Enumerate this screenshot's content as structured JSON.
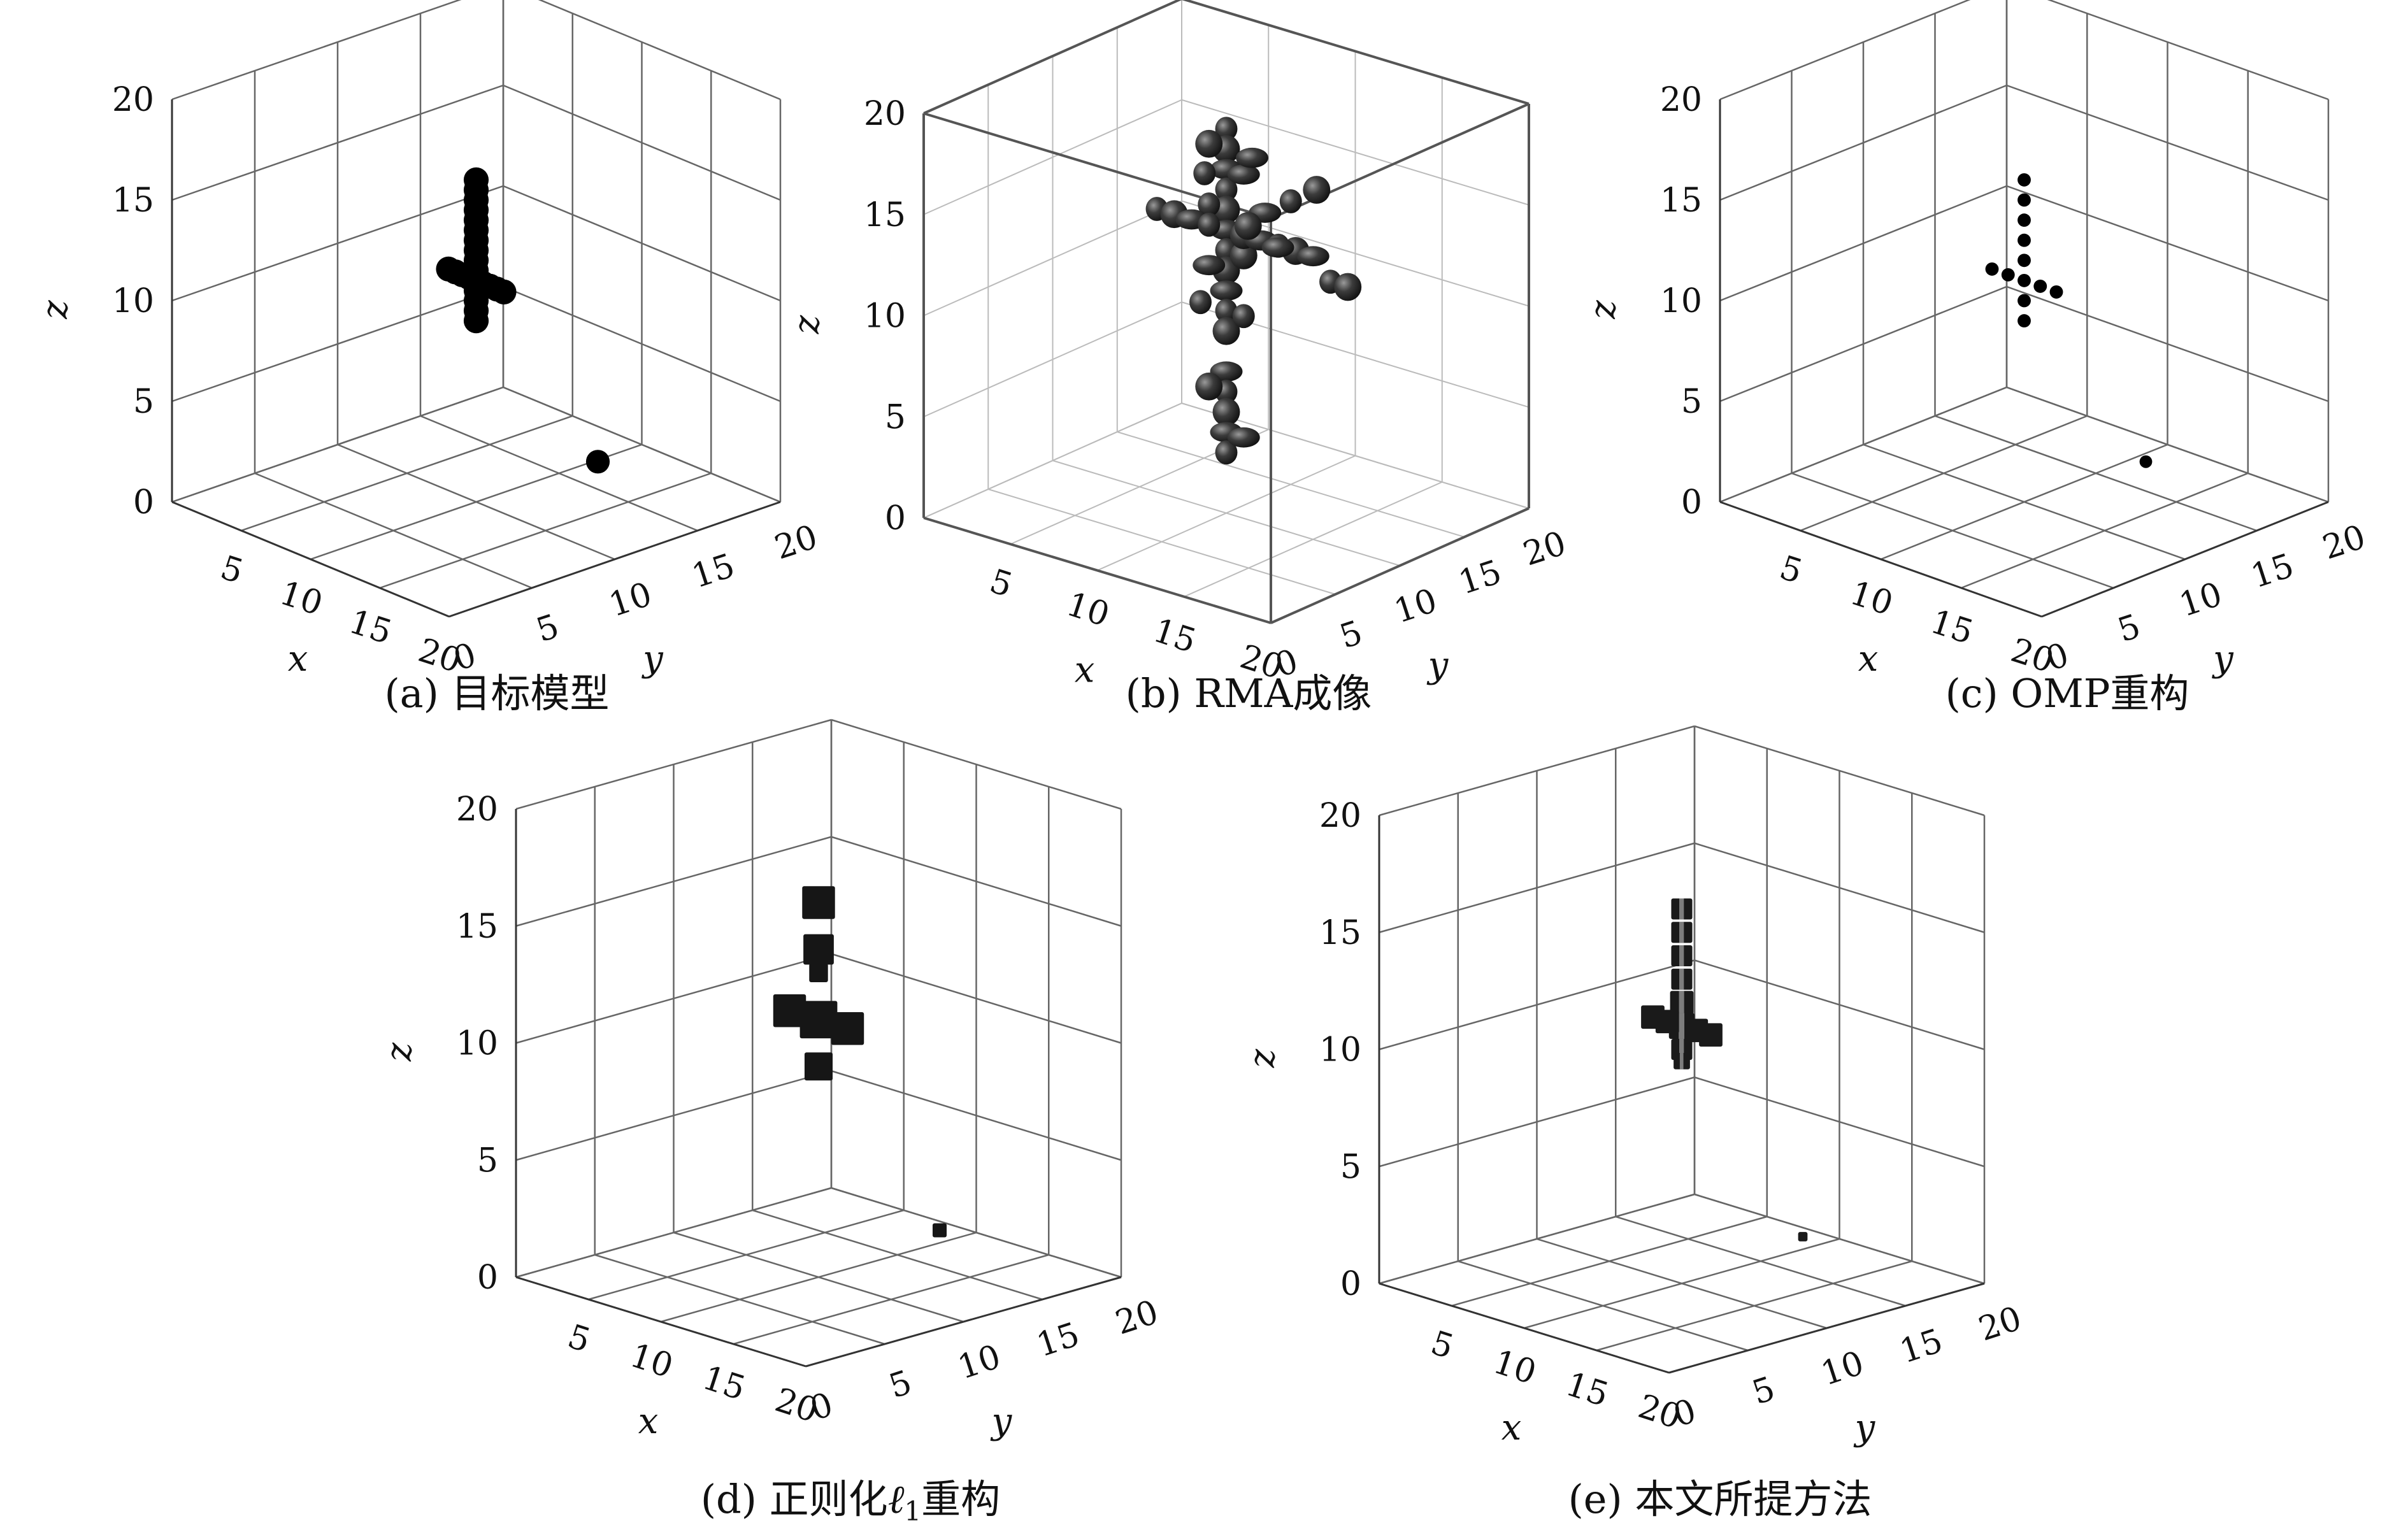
{
  "chart_data": [
    {
      "type": "scatter3d",
      "caption": "(a) 目标模型",
      "xlabel": "x",
      "ylabel": "y",
      "zlabel": "z",
      "x_ticks": [
        "5",
        "10",
        "15",
        "20"
      ],
      "y_ticks": [
        "0",
        "5",
        "10",
        "15",
        "20"
      ],
      "z_ticks": [
        "0",
        "5",
        "10",
        "15",
        "20"
      ],
      "xlim": [
        0,
        20
      ],
      "ylim": [
        0,
        20
      ],
      "zlim": [
        0,
        20
      ],
      "grid": true,
      "box": false,
      "marker": "filled-circle",
      "marker_size": "large",
      "points": [
        {
          "x": 10,
          "y": 10,
          "z": 9
        },
        {
          "x": 10,
          "y": 10,
          "z": 9.5
        },
        {
          "x": 10,
          "y": 10,
          "z": 10
        },
        {
          "x": 10,
          "y": 10,
          "z": 10.5
        },
        {
          "x": 10,
          "y": 10,
          "z": 11
        },
        {
          "x": 10,
          "y": 10,
          "z": 11.5
        },
        {
          "x": 10,
          "y": 10,
          "z": 12
        },
        {
          "x": 10,
          "y": 10,
          "z": 12.5
        },
        {
          "x": 10,
          "y": 10,
          "z": 13
        },
        {
          "x": 10,
          "y": 10,
          "z": 13.5
        },
        {
          "x": 10,
          "y": 10,
          "z": 14
        },
        {
          "x": 10,
          "y": 10,
          "z": 14.5
        },
        {
          "x": 10,
          "y": 10,
          "z": 15
        },
        {
          "x": 10,
          "y": 10,
          "z": 15.5
        },
        {
          "x": 10,
          "y": 10,
          "z": 16
        },
        {
          "x": 8,
          "y": 10,
          "z": 11
        },
        {
          "x": 8.5,
          "y": 10,
          "z": 11
        },
        {
          "x": 9,
          "y": 10,
          "z": 11
        },
        {
          "x": 9.5,
          "y": 10,
          "z": 11
        },
        {
          "x": 10.5,
          "y": 10,
          "z": 11
        },
        {
          "x": 11,
          "y": 10,
          "z": 11
        },
        {
          "x": 11.5,
          "y": 10,
          "z": 11
        },
        {
          "x": 12,
          "y": 10,
          "z": 11
        },
        {
          "x": 14,
          "y": 14,
          "z": 2
        }
      ]
    },
    {
      "type": "isosurface3d",
      "caption": "(b) RMA成像",
      "xlabel": "x",
      "ylabel": "y",
      "zlabel": "z",
      "x_ticks": [
        "5",
        "10",
        "15",
        "20"
      ],
      "y_ticks": [
        "0",
        "5",
        "10",
        "15",
        "20"
      ],
      "z_ticks": [
        "0",
        "5",
        "10",
        "15",
        "20"
      ],
      "xlim": [
        0,
        20
      ],
      "ylim": [
        0,
        20
      ],
      "zlim": [
        0,
        20
      ],
      "grid": true,
      "box": true,
      "blobs": [
        {
          "x": 10,
          "y": 10,
          "z": 19
        },
        {
          "x": 10,
          "y": 10,
          "z": 18
        },
        {
          "x": 10,
          "y": 10,
          "z": 17
        },
        {
          "x": 10,
          "y": 10,
          "z": 16
        },
        {
          "x": 10,
          "y": 10,
          "z": 15
        },
        {
          "x": 10,
          "y": 10,
          "z": 14
        },
        {
          "x": 10,
          "y": 10,
          "z": 13
        },
        {
          "x": 10,
          "y": 10,
          "z": 12
        },
        {
          "x": 10,
          "y": 10,
          "z": 11
        },
        {
          "x": 10,
          "y": 10,
          "z": 10
        },
        {
          "x": 10,
          "y": 10,
          "z": 9
        },
        {
          "x": 10,
          "y": 10,
          "z": 7
        },
        {
          "x": 10,
          "y": 10,
          "z": 6
        },
        {
          "x": 10,
          "y": 10,
          "z": 5
        },
        {
          "x": 10,
          "y": 10,
          "z": 4
        },
        {
          "x": 10,
          "y": 10,
          "z": 3
        },
        {
          "x": 9,
          "y": 10,
          "z": 18
        },
        {
          "x": 11,
          "y": 10,
          "z": 17
        },
        {
          "x": 9,
          "y": 10,
          "z": 15
        },
        {
          "x": 11,
          "y": 10,
          "z": 13
        },
        {
          "x": 9,
          "y": 10,
          "z": 12
        },
        {
          "x": 11,
          "y": 10,
          "z": 10
        },
        {
          "x": 9,
          "y": 10,
          "z": 6
        },
        {
          "x": 11,
          "y": 10,
          "z": 4
        },
        {
          "x": 6,
          "y": 10,
          "z": 14
        },
        {
          "x": 7,
          "y": 10,
          "z": 14
        },
        {
          "x": 8,
          "y": 10,
          "z": 14
        },
        {
          "x": 9,
          "y": 10,
          "z": 14
        },
        {
          "x": 11,
          "y": 10,
          "z": 14
        },
        {
          "x": 12,
          "y": 10,
          "z": 14
        },
        {
          "x": 13,
          "y": 10,
          "z": 14
        },
        {
          "x": 14,
          "y": 10,
          "z": 14
        },
        {
          "x": 15,
          "y": 10,
          "z": 14
        },
        {
          "x": 16,
          "y": 10,
          "z": 13
        },
        {
          "x": 17,
          "y": 10,
          "z": 13
        },
        {
          "x": 10,
          "y": 13,
          "z": 14
        },
        {
          "x": 10,
          "y": 15,
          "z": 14
        },
        {
          "x": 10,
          "y": 17,
          "z": 14
        },
        {
          "x": 10,
          "y": 14,
          "z": 12
        },
        {
          "x": 8,
          "y": 11,
          "z": 16
        },
        {
          "x": 12,
          "y": 9,
          "z": 15
        },
        {
          "x": 10,
          "y": 12,
          "z": 17
        },
        {
          "x": 10,
          "y": 8,
          "z": 11
        }
      ]
    },
    {
      "type": "scatter3d",
      "caption": "(c) OMP重构",
      "xlabel": "x",
      "ylabel": "y",
      "zlabel": "z",
      "x_ticks": [
        "5",
        "10",
        "15",
        "20"
      ],
      "y_ticks": [
        "0",
        "5",
        "10",
        "15",
        "20"
      ],
      "z_ticks": [
        "0",
        "5",
        "10",
        "15",
        "20"
      ],
      "xlim": [
        0,
        20
      ],
      "ylim": [
        0,
        20
      ],
      "zlim": [
        0,
        20
      ],
      "grid": true,
      "box": false,
      "marker": "filled-circle",
      "marker_size": "small",
      "points": [
        {
          "x": 10,
          "y": 10,
          "z": 16
        },
        {
          "x": 10,
          "y": 10,
          "z": 15
        },
        {
          "x": 10,
          "y": 10,
          "z": 14
        },
        {
          "x": 10,
          "y": 10,
          "z": 13
        },
        {
          "x": 10,
          "y": 10,
          "z": 12
        },
        {
          "x": 10,
          "y": 10,
          "z": 11
        },
        {
          "x": 10,
          "y": 10,
          "z": 10
        },
        {
          "x": 10,
          "y": 10,
          "z": 9
        },
        {
          "x": 8,
          "y": 10,
          "z": 11
        },
        {
          "x": 9,
          "y": 10,
          "z": 11
        },
        {
          "x": 11,
          "y": 10,
          "z": 11
        },
        {
          "x": 12,
          "y": 10,
          "z": 11
        },
        {
          "x": 14,
          "y": 14,
          "z": 2
        }
      ]
    },
    {
      "type": "voxel3d",
      "caption_prefix": "(d) 正则化",
      "caption_symbol": "ℓ",
      "caption_subscript": "1",
      "caption_suffix": "重构",
      "xlabel": "x",
      "ylabel": "y",
      "zlabel": "z",
      "x_ticks": [
        "5",
        "10",
        "15",
        "20"
      ],
      "y_ticks": [
        "0",
        "5",
        "10",
        "15",
        "20"
      ],
      "z_ticks": [
        "0",
        "5",
        "10",
        "15",
        "20"
      ],
      "xlim": [
        0,
        20
      ],
      "ylim": [
        0,
        20
      ],
      "zlim": [
        0,
        20
      ],
      "grid": true,
      "box": false,
      "voxels": [
        {
          "x": 10,
          "y": 10,
          "z": 16,
          "size": 1.4
        },
        {
          "x": 10,
          "y": 10,
          "z": 14,
          "size": 1.3
        },
        {
          "x": 10,
          "y": 10,
          "z": 13,
          "size": 0.8
        },
        {
          "x": 10,
          "y": 10,
          "z": 11,
          "size": 1.6
        },
        {
          "x": 10,
          "y": 10,
          "z": 9,
          "size": 1.2
        },
        {
          "x": 8,
          "y": 10,
          "z": 11,
          "size": 1.4
        },
        {
          "x": 12,
          "y": 10,
          "z": 11,
          "size": 1.4
        },
        {
          "x": 14,
          "y": 14,
          "z": 2,
          "size": 0.6
        }
      ]
    },
    {
      "type": "voxel3d",
      "caption": "(e) 本文所提方法",
      "xlabel": "x",
      "ylabel": "y",
      "zlabel": "z",
      "x_ticks": [
        "5",
        "10",
        "15",
        "20"
      ],
      "y_ticks": [
        "0",
        "5",
        "10",
        "15",
        "20"
      ],
      "z_ticks": [
        "0",
        "5",
        "10",
        "15",
        "20"
      ],
      "xlim": [
        0,
        20
      ],
      "ylim": [
        0,
        20
      ],
      "zlim": [
        0,
        20
      ],
      "grid": true,
      "box": false,
      "voxels": [
        {
          "x": 10,
          "y": 10,
          "z": 16,
          "size": 0.9
        },
        {
          "x": 10,
          "y": 10,
          "z": 15,
          "size": 0.9
        },
        {
          "x": 10,
          "y": 10,
          "z": 14,
          "size": 0.9
        },
        {
          "x": 10,
          "y": 10,
          "z": 13,
          "size": 0.9
        },
        {
          "x": 10,
          "y": 10,
          "z": 12,
          "size": 1.0
        },
        {
          "x": 10,
          "y": 10,
          "z": 11,
          "size": 1.1
        },
        {
          "x": 10,
          "y": 10,
          "z": 10,
          "size": 0.9
        },
        {
          "x": 10,
          "y": 10,
          "z": 9.5,
          "size": 0.7
        },
        {
          "x": 8,
          "y": 10,
          "z": 11,
          "size": 1.0
        },
        {
          "x": 9,
          "y": 10,
          "z": 11,
          "size": 1.0
        },
        {
          "x": 11,
          "y": 10,
          "z": 11,
          "size": 1.0
        },
        {
          "x": 12,
          "y": 10,
          "z": 11,
          "size": 1.0
        },
        {
          "x": 14,
          "y": 14,
          "z": 2,
          "size": 0.4
        }
      ]
    }
  ]
}
